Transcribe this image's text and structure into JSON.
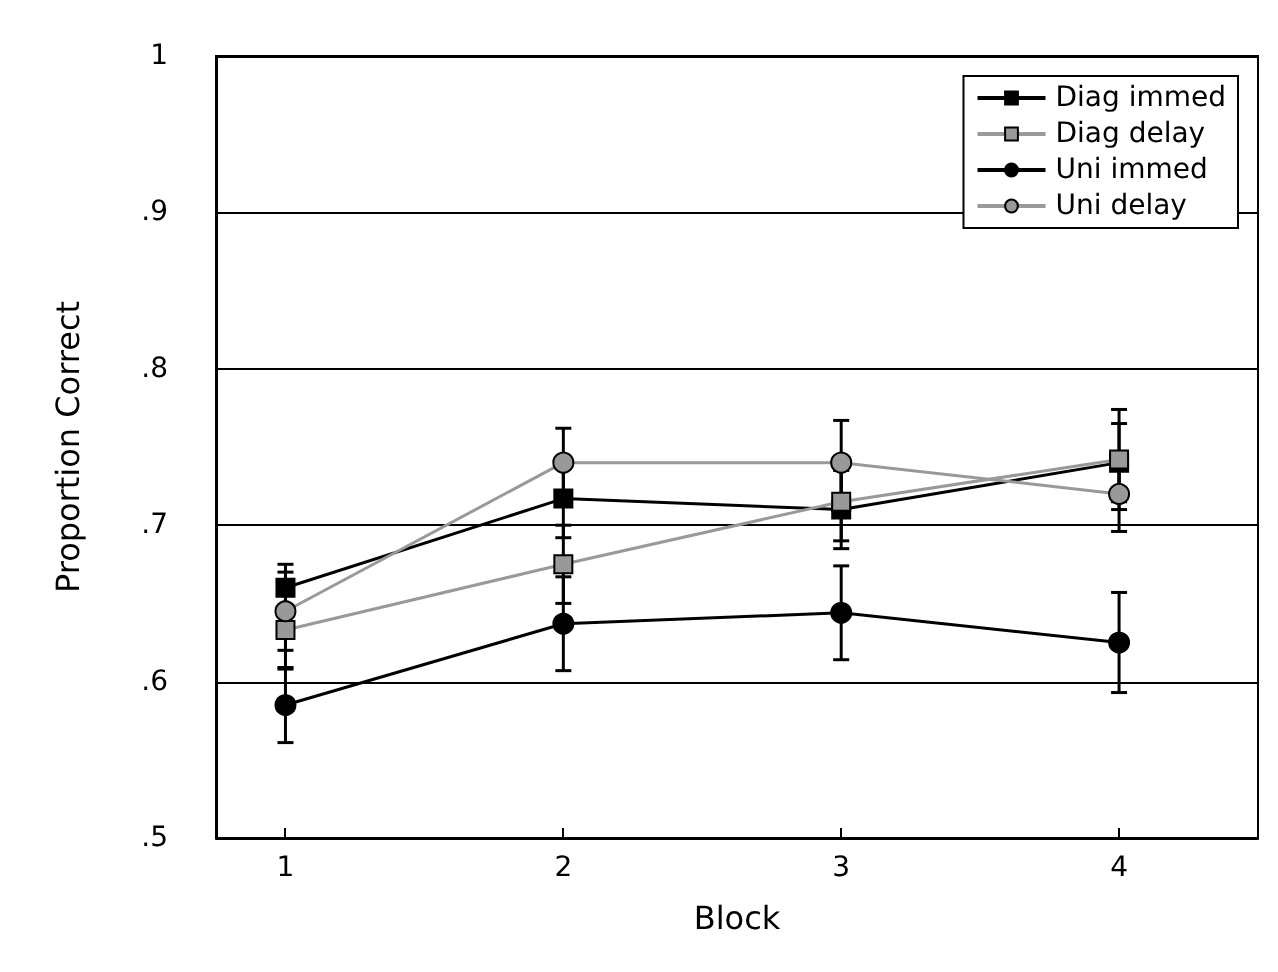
{
  "chart_data": {
    "type": "line",
    "xlabel": "Block",
    "ylabel": "Proportion Correct",
    "x": [
      1,
      2,
      3,
      4
    ],
    "xlim": [
      0.75,
      4.5
    ],
    "xticks": [
      1,
      2,
      3,
      4
    ],
    "ylim": [
      0.5,
      1
    ],
    "yticks": [
      {
        "value": 0.5,
        "label": ".5"
      },
      {
        "value": 0.6,
        "label": ".6"
      },
      {
        "value": 0.7,
        "label": ".7"
      },
      {
        "value": 0.8,
        "label": ".8"
      },
      {
        "value": 0.9,
        "label": ".9"
      },
      {
        "value": 1,
        "label": "1"
      }
    ],
    "grid": "y",
    "legend": "top right",
    "series": [
      {
        "name": "Diag immed",
        "color": "#000000",
        "marker": "square",
        "values": [
          0.66,
          0.717,
          0.71,
          0.74
        ],
        "errors": [
          0.015,
          0.025,
          0.025,
          0.025
        ]
      },
      {
        "name": "Diag delay",
        "color": "#999999",
        "marker": "square",
        "values": [
          0.633,
          0.675,
          0.715,
          0.742
        ],
        "errors": [
          0.025,
          0.025,
          0.025,
          0.032
        ]
      },
      {
        "name": "Uni immed",
        "color": "#000000",
        "marker": "circle",
        "values": [
          0.585,
          0.637,
          0.644,
          0.625
        ],
        "errors": [
          0.024,
          0.03,
          0.03,
          0.032
        ]
      },
      {
        "name": "Uni delay",
        "color": "#999999",
        "marker": "circle",
        "values": [
          0.645,
          0.74,
          0.74,
          0.72
        ],
        "errors": [
          0.025,
          0.022,
          0.027,
          0.024
        ]
      }
    ]
  }
}
